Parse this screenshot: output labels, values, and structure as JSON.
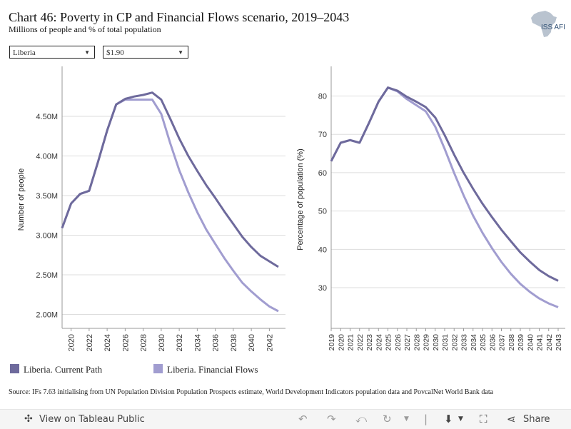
{
  "header": {
    "title": "Chart 46: Poverty in CP and Financial Flows scenario, 2019–2043",
    "subtitle": "Millions of people and % of total population",
    "logo_text": "ISS AFI"
  },
  "filters": {
    "country": "Liberia",
    "poverty_line": "$1.90"
  },
  "legend": {
    "current_path": "Liberia. Current Path",
    "financial_flows": "Liberia. Financial Flows"
  },
  "colors": {
    "current_path": "#6e6a9c",
    "financial_flows": "#a19dd0",
    "grid": "#dddddd",
    "axis": "#999999"
  },
  "source": "Source: IFs 7.63 initialising from UN Population Division Population Prospects estimate, World Development Indicators population data and PovcalNet World Bank data",
  "toolbar": {
    "view_label": "View on Tableau Public",
    "share_label": "Share"
  },
  "chart_data": [
    {
      "type": "line",
      "ylabel": "Number of people",
      "xlabel": "",
      "x": [
        2019,
        2020,
        2021,
        2022,
        2023,
        2024,
        2025,
        2026,
        2027,
        2028,
        2029,
        2030,
        2031,
        2032,
        2033,
        2034,
        2035,
        2036,
        2037,
        2038,
        2039,
        2040,
        2041,
        2042,
        2043
      ],
      "ylim": [
        1.95,
        4.95
      ],
      "yticks": [
        2.0,
        2.5,
        3.0,
        3.5,
        4.0,
        4.5
      ],
      "ytick_labels": [
        "2.00M",
        "2.50M",
        "3.00M",
        "3.50M",
        "4.00M",
        "4.50M"
      ],
      "xticks": [
        2020,
        2022,
        2024,
        2026,
        2028,
        2030,
        2032,
        2034,
        2036,
        2038,
        2040,
        2042
      ],
      "series": [
        {
          "name": "Liberia. Current Path",
          "values": [
            3.09,
            3.4,
            3.52,
            3.56,
            3.93,
            4.32,
            4.65,
            4.72,
            4.75,
            4.77,
            4.8,
            4.71,
            4.47,
            4.22,
            4.0,
            3.81,
            3.63,
            3.47,
            3.3,
            3.14,
            2.98,
            2.85,
            2.74,
            2.67,
            2.6
          ]
        },
        {
          "name": "Liberia. Financial Flows",
          "values": [
            3.09,
            3.4,
            3.52,
            3.56,
            3.93,
            4.32,
            4.65,
            4.71,
            4.71,
            4.71,
            4.71,
            4.53,
            4.16,
            3.82,
            3.54,
            3.29,
            3.07,
            2.89,
            2.71,
            2.55,
            2.4,
            2.29,
            2.19,
            2.1,
            2.04
          ]
        }
      ],
      "grid": true
    },
    {
      "type": "line",
      "ylabel": "Percentage of population (%)",
      "xlabel": "",
      "x": [
        2019,
        2020,
        2021,
        2022,
        2023,
        2024,
        2025,
        2026,
        2027,
        2028,
        2029,
        2030,
        2031,
        2032,
        2033,
        2034,
        2035,
        2036,
        2037,
        2038,
        2039,
        2040,
        2041,
        2042,
        2043
      ],
      "ylim": [
        22,
        84
      ],
      "yticks": [
        30,
        40,
        50,
        60,
        70,
        80
      ],
      "ytick_labels": [
        "30",
        "40",
        "50",
        "60",
        "70",
        "80"
      ],
      "xticks": [
        2019,
        2020,
        2021,
        2022,
        2023,
        2024,
        2025,
        2026,
        2027,
        2028,
        2029,
        2030,
        2031,
        2032,
        2033,
        2034,
        2035,
        2036,
        2037,
        2038,
        2039,
        2040,
        2041,
        2042,
        2043
      ],
      "series": [
        {
          "name": "Liberia. Current Path",
          "values": [
            63.0,
            67.8,
            68.5,
            67.8,
            73.0,
            78.5,
            82.2,
            81.4,
            79.8,
            78.5,
            77.1,
            74.4,
            69.8,
            64.7,
            60.0,
            55.8,
            51.9,
            48.4,
            45.1,
            42.1,
            39.2,
            36.8,
            34.6,
            33.0,
            31.8
          ]
        },
        {
          "name": "Liberia. Financial Flows",
          "values": [
            63.0,
            67.8,
            68.5,
            67.8,
            73.0,
            78.5,
            82.2,
            81.2,
            79.2,
            77.6,
            76.0,
            72.0,
            66.2,
            59.9,
            54.1,
            48.8,
            44.3,
            40.3,
            36.7,
            33.6,
            31.0,
            28.9,
            27.2,
            25.9,
            24.9
          ]
        }
      ],
      "grid": true
    }
  ]
}
